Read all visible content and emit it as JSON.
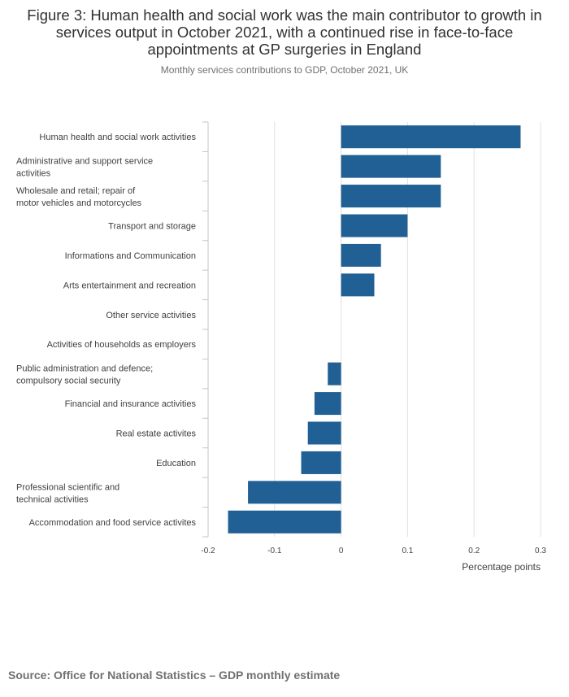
{
  "chart_data": {
    "type": "bar",
    "orientation": "horizontal",
    "title": "Figure 3: Human health and social work was the main contributor to growth in services output in October 2021, with a continued rise in face-to-face appointments at GP surgeries in England",
    "subtitle": "Monthly services contributions to GDP, October 2021, UK",
    "xlabel": "Percentage points",
    "ylabel": "",
    "xlim": [
      -0.2,
      0.3
    ],
    "xticks": [
      "-0.2",
      "-0.1",
      "0",
      "0.1",
      "0.2",
      "0.3"
    ],
    "grid": true,
    "bar_color": "#206095",
    "categories": [
      "Human health and social work activities",
      "Administrative and support service activities",
      "Wholesale and retail; repair of motor vehicles and motorcycles",
      "Transport and storage",
      "Informations and Communication",
      "Arts entertainment and recreation",
      "Other service activities",
      "Activities of households as employers",
      "Public administration and defence; compulsory social security",
      "Financial and insurance activities",
      "Real estate activites",
      "Education",
      "Professional scientific and technical activities",
      "Accommodation and food service activites"
    ],
    "values": [
      0.27,
      0.15,
      0.15,
      0.1,
      0.06,
      0.05,
      0,
      0,
      -0.02,
      -0.04,
      -0.05,
      -0.06,
      -0.14,
      -0.17
    ]
  },
  "source": "Source: Office for National Statistics – GDP monthly estimate"
}
